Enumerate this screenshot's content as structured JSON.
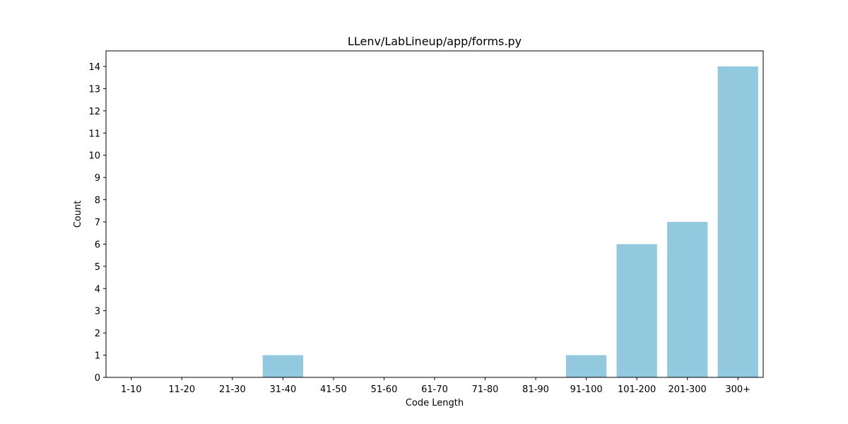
{
  "chart_data": {
    "type": "bar",
    "title": "LLenv/LabLineup/app/forms.py",
    "xlabel": "Code Length",
    "ylabel": "Count",
    "categories": [
      "1-10",
      "11-20",
      "21-30",
      "31-40",
      "41-50",
      "51-60",
      "61-70",
      "71-80",
      "81-90",
      "91-100",
      "101-200",
      "201-300",
      "300+"
    ],
    "values": [
      0,
      0,
      0,
      1,
      0,
      0,
      0,
      0,
      0,
      1,
      6,
      7,
      14
    ],
    "ylim": [
      0,
      14.7
    ],
    "yticks": [
      0,
      1,
      2,
      3,
      4,
      5,
      6,
      7,
      8,
      9,
      10,
      11,
      12,
      13,
      14
    ],
    "bar_color": "#92c9df",
    "grid": false,
    "legend": false
  }
}
